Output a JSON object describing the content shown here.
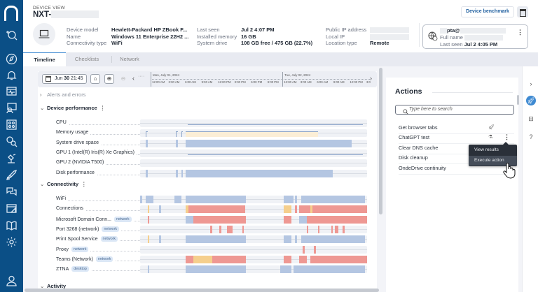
{
  "nav": {
    "items": [
      "search-device",
      "dashboard",
      "notifications",
      "monitor",
      "troubleshoot",
      "grid",
      "investigate",
      "automation",
      "remote-actions",
      "feedback",
      "design",
      "library",
      "settings",
      "profile"
    ]
  },
  "header": {
    "section_label": "DEVICE VIEW",
    "device_name_prefix": "NXT-",
    "fields": [
      {
        "key": "Device model",
        "value": "Hewlett-Packard HP ZBook F..."
      },
      {
        "key": "Name",
        "value": "Windows 11 Enterprise 22H2 ..."
      },
      {
        "key": "Connectivity type",
        "value": "WiFi"
      },
      {
        "key": "Last seen",
        "value": "Jul 2 4:07 PM"
      },
      {
        "key": "Installed memory",
        "value": "16 GB"
      },
      {
        "key": "System drive",
        "value": "108 GB free / 475 GB (22.7%)"
      },
      {
        "key": "Public IP address",
        "value": ""
      },
      {
        "key": "Local IP",
        "value": ""
      },
      {
        "key": "Location type",
        "value": "Remote"
      }
    ],
    "benchmark_button": "Device benchmark",
    "user": {
      "username_suffix": "pta@",
      "full_name_label": "Full name",
      "last_seen_label": "Last seen",
      "last_seen_value": "Jul 2 4:05 PM"
    }
  },
  "tabs": [
    {
      "label": "Timeline",
      "active": true
    },
    {
      "label": "Checklists",
      "active": false
    },
    {
      "label": "Network",
      "active": false
    }
  ],
  "timeline": {
    "date_month": "Jun",
    "date_day": "30",
    "date_time": "21:45",
    "axis": {
      "days": [
        "Mon, July 01, 2024",
        "Tue, July 02, 2024"
      ],
      "ticks": [
        "12:00 AM",
        "3:00 AM",
        "6:00 AM",
        "9:00 AM",
        "12:00 PM",
        "3:00 PM",
        "6:00 PM",
        "9:00 PM",
        "12:00 AM",
        "3:00 AM",
        "6:00 AM",
        "9:00 AM",
        "12:00 PM",
        "3:0"
      ]
    },
    "sections": {
      "alerts": "Alerts and errors",
      "performance": "Device performance",
      "connectivity": "Connectivity",
      "activity": "Activity"
    },
    "performance_rows": [
      {
        "label": "CPU"
      },
      {
        "label": "Memory usage"
      },
      {
        "label": "System drive space"
      },
      {
        "label": "GPU 1 (Intel(R) Iris(R) Xe Graphics)"
      },
      {
        "label": "GPU 2 (NVIDIA T500)"
      },
      {
        "label": "Disk performance"
      }
    ],
    "connectivity_rows": [
      {
        "label": "WiFi",
        "badge": ""
      },
      {
        "label": "Connections",
        "badge": ""
      },
      {
        "label": "Microsoft Domain Conn...",
        "badge": "network"
      },
      {
        "label": "Port 3268 (network)",
        "badge": "network"
      },
      {
        "label": "Print Spool Service",
        "badge": "network"
      },
      {
        "label": "Proxy",
        "badge": "network"
      },
      {
        "label": "Teams (Network)",
        "badge": "network"
      },
      {
        "label": "ZTNA",
        "badge": "desktop"
      }
    ],
    "colors": {
      "ok": "#b4c6e2",
      "error": "#ee9893",
      "warning": "#f5cf8d"
    }
  },
  "actions": {
    "title": "Actions",
    "search_placeholder": "Type here to search",
    "items": [
      {
        "label": "Get browser tabs",
        "icon": "rocket"
      },
      {
        "label": "ChatGPT test",
        "icon": "lab"
      },
      {
        "label": "Clear DNS cache",
        "icon": ""
      },
      {
        "label": "Disk cleanup",
        "icon": ""
      },
      {
        "label": "OndeDrive continuity",
        "icon": ""
      }
    ],
    "context_menu": [
      "View results",
      "Execute action"
    ]
  }
}
